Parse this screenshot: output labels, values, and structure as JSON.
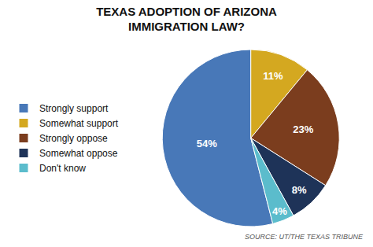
{
  "chart_data": {
    "type": "pie",
    "title": "TEXAS ADOPTION OF ARIZONA\nIMMIGRATION LAW?",
    "categories": [
      "Strongly support",
      "Somewhat support",
      "Strongly oppose",
      "Somewhat oppose",
      "Don't know"
    ],
    "values": [
      54,
      11,
      23,
      8,
      4
    ],
    "value_labels": [
      "54%",
      "11%",
      "23%",
      "8%",
      "4%"
    ],
    "colors": [
      "#4878b8",
      "#d4a820",
      "#7b3d1e",
      "#1e3358",
      "#5bbccc"
    ],
    "data_labels": true,
    "legend": "left",
    "annotations": [
      "SOURCE: UT/THE TEXAS TRIBUNE"
    ]
  }
}
